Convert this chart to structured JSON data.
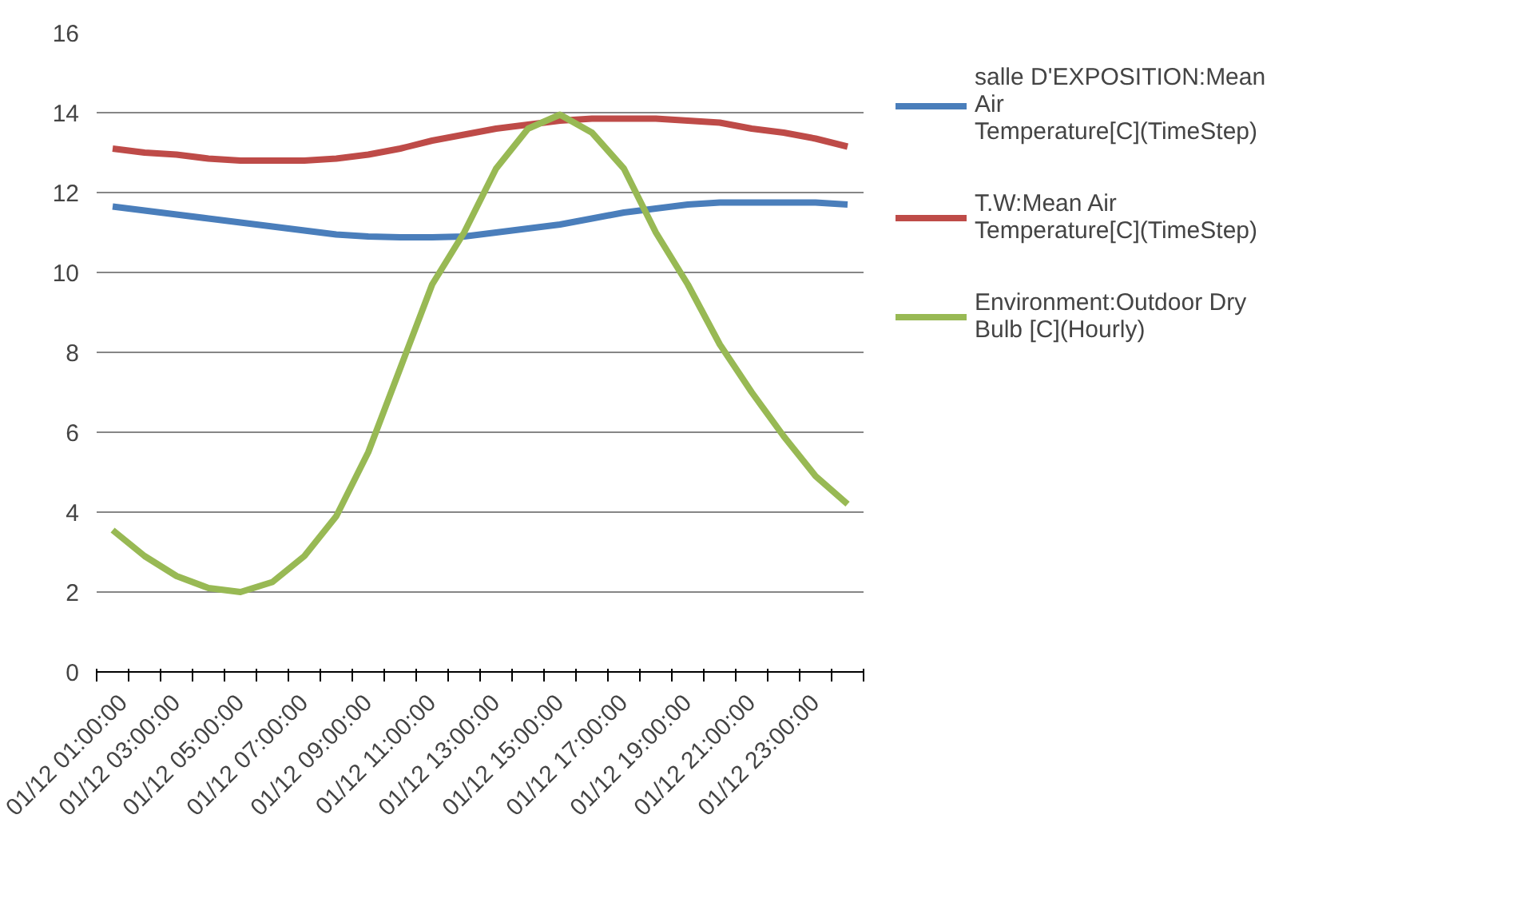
{
  "chart_data": {
    "type": "line",
    "categories": [
      "01/12 01:00:00",
      null,
      "01/12 03:00:00",
      null,
      "01/12 05:00:00",
      null,
      "01/12 07:00:00",
      null,
      "01/12 09:00:00",
      null,
      "01/12 11:00:00",
      null,
      "01/12 13:00:00",
      null,
      "01/12 15:00:00",
      null,
      "01/12 17:00:00",
      null,
      "01/12 19:00:00",
      null,
      "01/12 21:00:00",
      null,
      "01/12 23:00:00",
      null
    ],
    "series": [
      {
        "name": "salle D'EXPOSITION:Mean Air Temperature[C](TimeStep)",
        "color": "#4a7ebb",
        "values": [
          11.65,
          11.55,
          11.45,
          11.35,
          11.25,
          11.15,
          11.05,
          10.95,
          10.9,
          10.88,
          10.88,
          10.9,
          11.0,
          11.1,
          11.2,
          11.35,
          11.5,
          11.6,
          11.7,
          11.75,
          11.75,
          11.75,
          11.75,
          11.7
        ]
      },
      {
        "name": "T.W:Mean Air Temperature[C](TimeStep)",
        "color": "#be4b48",
        "values": [
          13.1,
          13.0,
          12.95,
          12.85,
          12.8,
          12.8,
          12.8,
          12.85,
          12.95,
          13.1,
          13.3,
          13.45,
          13.6,
          13.7,
          13.8,
          13.85,
          13.85,
          13.85,
          13.8,
          13.75,
          13.6,
          13.5,
          13.35,
          13.15
        ]
      },
      {
        "name": "Environment:Outdoor Dry Bulb [C](Hourly)",
        "color": "#98b954",
        "values": [
          3.55,
          2.9,
          2.4,
          2.1,
          2.0,
          2.25,
          2.9,
          3.9,
          5.5,
          7.6,
          9.7,
          11.0,
          12.6,
          13.6,
          13.95,
          13.5,
          12.6,
          11.0,
          9.7,
          8.2,
          7.0,
          5.9,
          4.9,
          4.2
        ]
      }
    ],
    "ylim": [
      0,
      16
    ],
    "yticks": [
      0,
      2,
      4,
      6,
      8,
      10,
      12,
      14,
      16
    ],
    "grid": "y",
    "legend": "right",
    "marker": "none",
    "line_style": "solid"
  }
}
